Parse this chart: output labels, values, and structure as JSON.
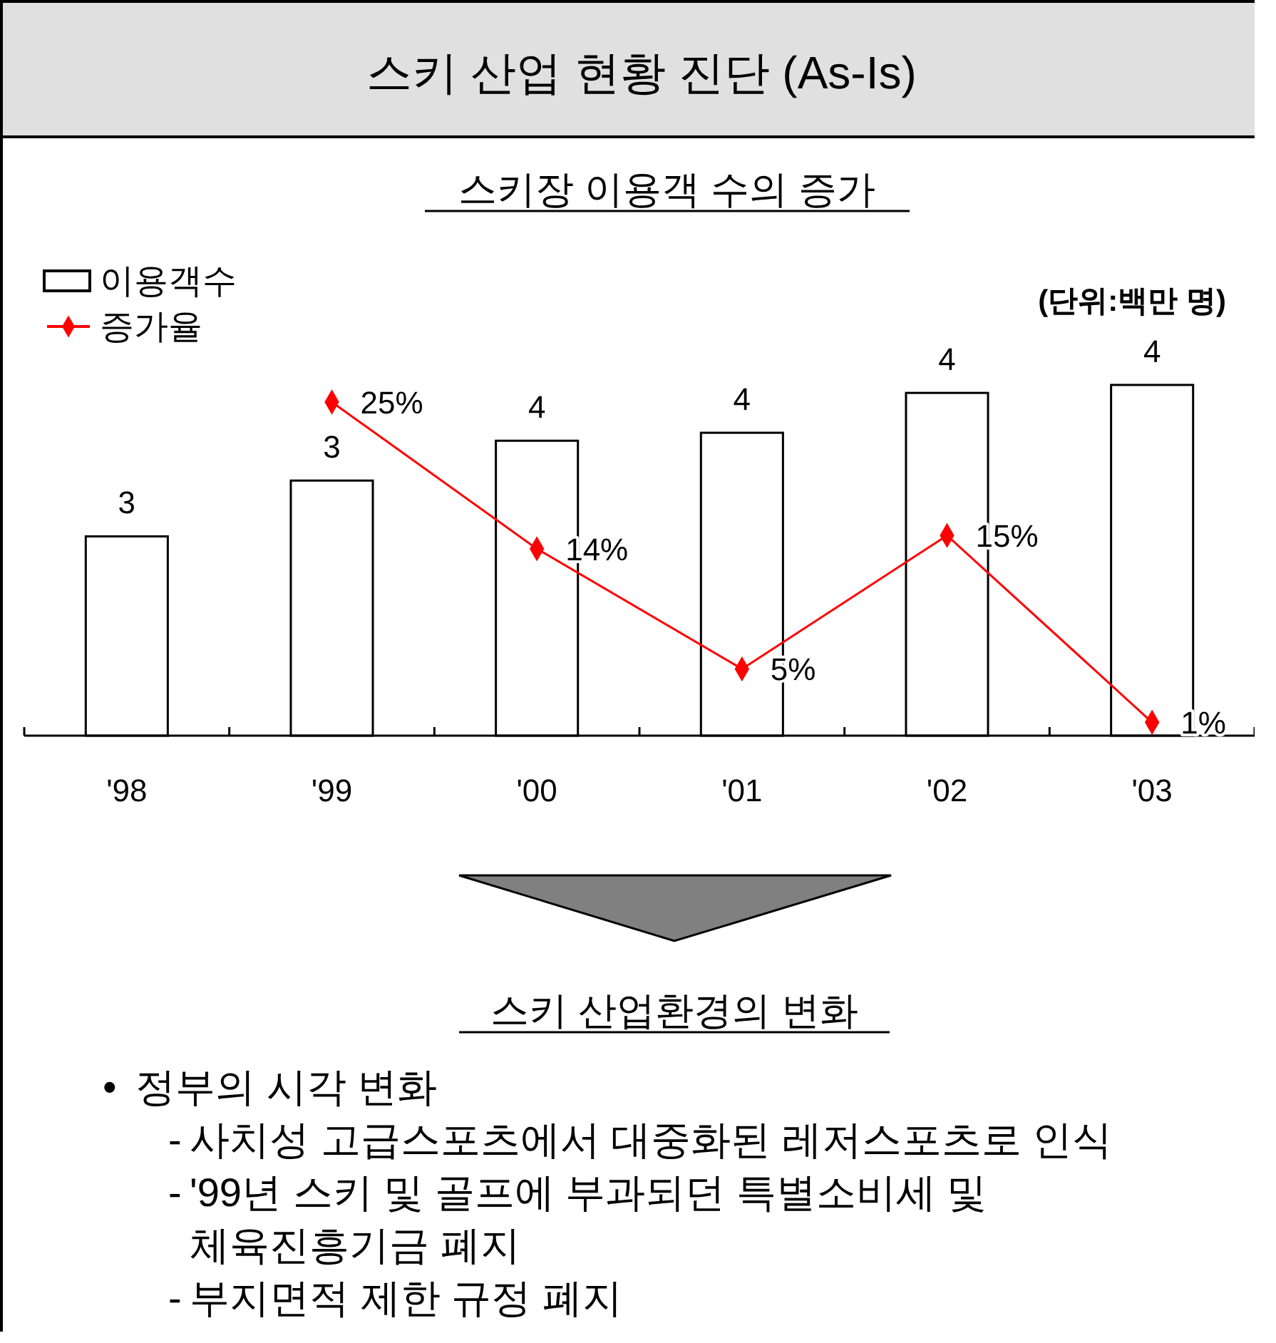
{
  "chart_data": {
    "type": "bar",
    "title": "스키 산업 현황 진단 (As-Is)",
    "subtitle": "스키장 이용객 수의 증가",
    "categories": [
      "'98",
      "'99",
      "'00",
      "'01",
      "'02",
      "'03"
    ],
    "series": [
      {
        "name": "이용객수",
        "color": "#ffffff",
        "values": [
          2.5,
          3.2,
          3.7,
          3.8,
          4.3,
          4.4
        ],
        "value_labels": [
          "3",
          "3",
          "4",
          "4",
          "4",
          "4"
        ]
      },
      {
        "name": "증가율",
        "type": "line",
        "axis": "y2",
        "color": "#ff0000",
        "marker": "diamond",
        "values": [
          null,
          25,
          14,
          5,
          15,
          1
        ],
        "value_labels": [
          null,
          "25%",
          "14%",
          "5%",
          "15%",
          "1%"
        ]
      }
    ],
    "legend": "top left",
    "annotations": [
      "(단위:백만 명)",
      "스키 산업환경의 변화",
      "• 정부의 시각 변화",
      "- 사치성 고급스포츠에서 대중화된 레저스포츠로 인식",
      "- '99년 스키 및 골프에 부과되던 특별소비세 및 체육진흥기금 폐지",
      "- 부지면적 제한 규정 폐지"
    ]
  }
}
